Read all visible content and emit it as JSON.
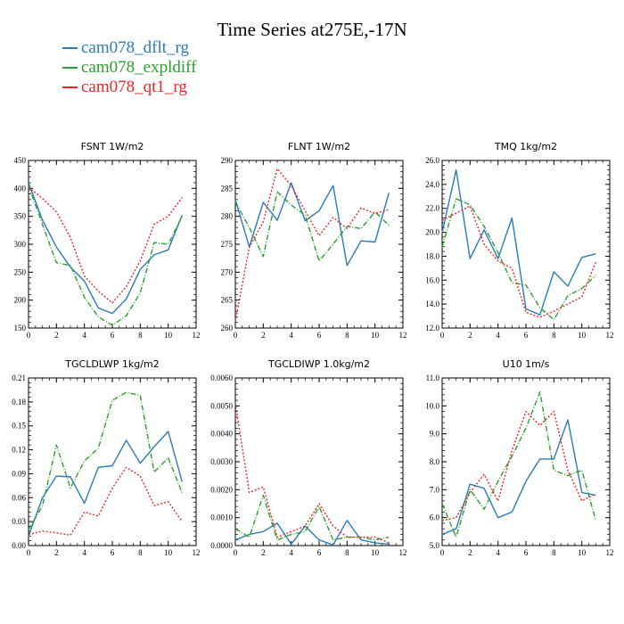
{
  "title": "Time Series at275E,-17N",
  "legend": [
    {
      "label": "cam078_dflt_rg",
      "color": "#2b7bba",
      "dash": ""
    },
    {
      "label": "cam078_expldiff",
      "color": "#2ca02c",
      "dash": "6,2,1,2"
    },
    {
      "label": "cam078_qt1_rg",
      "color": "#e8282b",
      "dash": "2,2"
    }
  ],
  "chart_data": [
    {
      "type": "line",
      "title": "FSNT  1W/m2",
      "xlim": [
        0,
        12
      ],
      "ylim": [
        150,
        450
      ],
      "xticks": [
        0,
        2,
        4,
        6,
        8,
        10,
        12
      ],
      "yticks": [
        150,
        200,
        250,
        300,
        350,
        400,
        450
      ],
      "yticklabels": [
        "150",
        "200",
        "250",
        "300",
        "350",
        "400",
        "450"
      ],
      "x": [
        0,
        1,
        2,
        3,
        4,
        5,
        6,
        7,
        8,
        9,
        10,
        11
      ],
      "series": [
        {
          "name": "cam078_dflt_rg",
          "values": [
            410,
            343,
            295,
            259,
            234,
            186,
            176,
            202,
            255,
            281,
            290,
            352
          ]
        },
        {
          "name": "cam078_expldiff",
          "values": [
            405,
            335,
            267,
            262,
            205,
            170,
            155,
            172,
            213,
            303,
            300,
            350
          ]
        },
        {
          "name": "cam078_qt1_rg",
          "values": [
            402,
            382,
            358,
            312,
            243,
            216,
            195,
            224,
            270,
            336,
            350,
            384
          ]
        }
      ]
    },
    {
      "type": "line",
      "title": "FLNT  1W/m2",
      "xlim": [
        0,
        12
      ],
      "ylim": [
        260,
        290
      ],
      "xticks": [
        0,
        2,
        4,
        6,
        8,
        10,
        12
      ],
      "yticks": [
        260,
        265,
        270,
        275,
        280,
        285,
        290
      ],
      "yticklabels": [
        "260",
        "265",
        "270",
        "275",
        "280",
        "285",
        "290"
      ],
      "x": [
        0,
        1,
        2,
        3,
        4,
        5,
        6,
        7,
        8,
        9,
        10,
        11
      ],
      "series": [
        {
          "name": "cam078_dflt_rg",
          "values": [
            283,
            274.5,
            282.5,
            279.3,
            286,
            279.2,
            281,
            285.5,
            271.2,
            275.6,
            275.4,
            284.2
          ]
        },
        {
          "name": "cam078_expldiff",
          "values": [
            282.6,
            278,
            272.8,
            284.4,
            282,
            280.2,
            272,
            275,
            278.2,
            277.8,
            280.8,
            278.4
          ]
        },
        {
          "name": "cam078_qt1_rg",
          "values": [
            261.2,
            274.5,
            279,
            288.5,
            285.5,
            281,
            276.5,
            279.8,
            277.8,
            281.5,
            280.5,
            281.2
          ]
        }
      ]
    },
    {
      "type": "line",
      "title": "TMQ  1kg/m2",
      "xlim": [
        0,
        12
      ],
      "ylim": [
        12,
        26
      ],
      "xticks": [
        0,
        2,
        4,
        6,
        8,
        10,
        12
      ],
      "yticks": [
        12,
        14,
        16,
        18,
        20,
        22,
        24,
        26
      ],
      "yticklabels": [
        "12.0",
        "14.0",
        "16.0",
        "18.0",
        "20.0",
        "22.0",
        "24.0",
        "26.0"
      ],
      "x": [
        0,
        1,
        2,
        3,
        4,
        5,
        6,
        7,
        8,
        9,
        10,
        11
      ],
      "series": [
        {
          "name": "cam078_dflt_rg",
          "values": [
            20,
            25.2,
            17.8,
            20.2,
            17.8,
            21.2,
            13.6,
            13.1,
            16.7,
            15.5,
            17.9,
            18.2
          ]
        },
        {
          "name": "cam078_expldiff",
          "values": [
            18.8,
            22.8,
            22.3,
            20.5,
            18.3,
            15.8,
            15.6,
            13.7,
            12.7,
            14.7,
            15.3,
            16.4
          ]
        },
        {
          "name": "cam078_qt1_rg",
          "values": [
            21,
            21.6,
            22.2,
            19,
            17.6,
            17,
            13.3,
            12.9,
            13.4,
            14,
            14.6,
            17.5
          ]
        }
      ]
    },
    {
      "type": "line",
      "title": "TGCLDLWP  1kg/m2",
      "xlim": [
        0,
        12
      ],
      "ylim": [
        0,
        0.21
      ],
      "xticks": [
        0,
        2,
        4,
        6,
        8,
        10,
        12
      ],
      "yticks": [
        0,
        0.03,
        0.06,
        0.09,
        0.12,
        0.15,
        0.18,
        0.21
      ],
      "yticklabels": [
        "0.00",
        "0.03",
        "0.06",
        "0.09",
        "0.12",
        "0.15",
        "0.18",
        "0.21"
      ],
      "x": [
        0,
        1,
        2,
        3,
        4,
        5,
        6,
        7,
        8,
        9,
        10,
        11
      ],
      "series": [
        {
          "name": "cam078_dflt_rg",
          "values": [
            0.012,
            0.06,
            0.087,
            0.086,
            0.053,
            0.098,
            0.1,
            0.132,
            0.103,
            0.124,
            0.143,
            0.08
          ]
        },
        {
          "name": "cam078_expldiff",
          "values": [
            0.02,
            0.05,
            0.126,
            0.072,
            0.106,
            0.122,
            0.182,
            0.192,
            0.188,
            0.092,
            0.11,
            0.066
          ]
        },
        {
          "name": "cam078_qt1_rg",
          "values": [
            0.014,
            0.018,
            0.016,
            0.013,
            0.042,
            0.037,
            0.072,
            0.098,
            0.087,
            0.05,
            0.055,
            0.03
          ]
        }
      ]
    },
    {
      "type": "line",
      "title": "TGCLDIWP  1.0kg/m2",
      "xlim": [
        0,
        12
      ],
      "ylim": [
        0,
        0.006
      ],
      "xticks": [
        0,
        2,
        4,
        6,
        8,
        10,
        12
      ],
      "yticks": [
        0,
        0.001,
        0.002,
        0.003,
        0.004,
        0.005,
        0.006
      ],
      "yticklabels": [
        "0.0000",
        "0.0010",
        "0.0020",
        "0.0030",
        "0.0040",
        "0.0050",
        "0.0060"
      ],
      "x": [
        0,
        1,
        2,
        3,
        4,
        5,
        6,
        7,
        8,
        9,
        10,
        11
      ],
      "series": [
        {
          "name": "cam078_dflt_rg",
          "values": [
            0.0002,
            0.0004,
            0.0005,
            0.0008,
            5e-05,
            0.0007,
            0.0002,
            2e-05,
            0.0009,
            0.0002,
            0.0001,
            5e-05
          ]
        },
        {
          "name": "cam078_expldiff",
          "values": [
            0.0006,
            0.0003,
            0.0018,
            0.0002,
            0.0004,
            0.0005,
            0.0014,
            0.0002,
            0.0003,
            0.0003,
            0.0002,
            0.0003
          ]
        },
        {
          "name": "cam078_qt1_rg",
          "values": [
            0.0051,
            0.0019,
            0.0021,
            0.0003,
            0.0005,
            0.0007,
            0.0015,
            0.0007,
            0.0003,
            0.0003,
            0.0003,
            0.0001
          ]
        }
      ]
    },
    {
      "type": "line",
      "title": "U10  1m/s",
      "xlim": [
        0,
        12
      ],
      "ylim": [
        5,
        11
      ],
      "xticks": [
        0,
        2,
        4,
        6,
        8,
        10,
        12
      ],
      "yticks": [
        5,
        6,
        7,
        8,
        9,
        10,
        11
      ],
      "yticklabels": [
        "5.0",
        "6.0",
        "7.0",
        "8.0",
        "9.0",
        "10.0",
        "11.0"
      ],
      "x": [
        0,
        1,
        2,
        3,
        4,
        5,
        6,
        7,
        8,
        9,
        10,
        11
      ],
      "series": [
        {
          "name": "cam078_dflt_rg",
          "values": [
            5.4,
            5.6,
            7.2,
            7.05,
            6.0,
            6.2,
            7.3,
            8.1,
            8.1,
            9.5,
            6.9,
            6.8
          ]
        },
        {
          "name": "cam078_expldiff",
          "values": [
            6.5,
            5.3,
            7.0,
            6.3,
            7.3,
            8.2,
            9.2,
            10.5,
            7.7,
            7.5,
            7.7,
            5.9
          ]
        },
        {
          "name": "cam078_qt1_rg",
          "values": [
            5.9,
            6.0,
            6.9,
            7.55,
            6.6,
            8.4,
            9.8,
            9.3,
            9.8,
            7.7,
            6.6,
            6.85
          ]
        }
      ]
    }
  ]
}
